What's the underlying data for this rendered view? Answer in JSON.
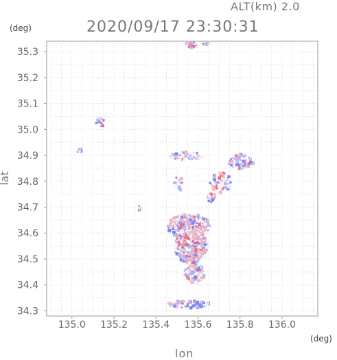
{
  "header": {
    "altitude": "ALT(km) 2.0",
    "timestamp": "2020/09/17 23:30:31"
  },
  "axes": {
    "x_unit": "(deg)",
    "y_unit": "(deg)",
    "x_label": "lon",
    "y_label": "lat",
    "x_ticks": [
      "135.0",
      "135.2",
      "135.4",
      "135.6",
      "135.8",
      "136.0"
    ],
    "y_ticks": [
      "34.3",
      "34.4",
      "34.5",
      "34.6",
      "34.7",
      "34.8",
      "34.9",
      "35.0",
      "35.1",
      "35.2",
      "35.3"
    ]
  },
  "chart_data": {
    "type": "heatmap",
    "xlim": [
      134.88,
      136.17
    ],
    "ylim": [
      34.28,
      35.34
    ],
    "grid": true,
    "colors": {
      "positive": "#f07080",
      "negative": "#7c86ee",
      "grid": "#dddddd",
      "frame": "#999999"
    }
  }
}
